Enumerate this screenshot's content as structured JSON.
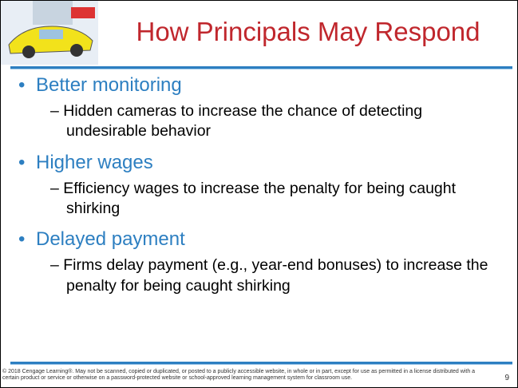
{
  "slide": {
    "title": "How Principals May Respond",
    "bullets": [
      {
        "text": "Better monitoring",
        "sub": "Hidden cameras to increase the chance of detecting undesirable behavior"
      },
      {
        "text": "Higher wages",
        "sub": "Efficiency wages to increase the penalty for being caught shirking"
      },
      {
        "text": "Delayed payment",
        "sub": "Firms delay payment (e.g., year-end bonuses) to increase the penalty for being caught shirking"
      }
    ],
    "footer": "© 2018 Cengage Learning®. May not be scanned, copied or duplicated, or posted to a publicly accessible website, in whole or in part, except for use as permitted in a license distributed with a certain product or service or otherwise on a password-protected website or school-approved learning management system for classroom use.",
    "page_number": "9"
  }
}
